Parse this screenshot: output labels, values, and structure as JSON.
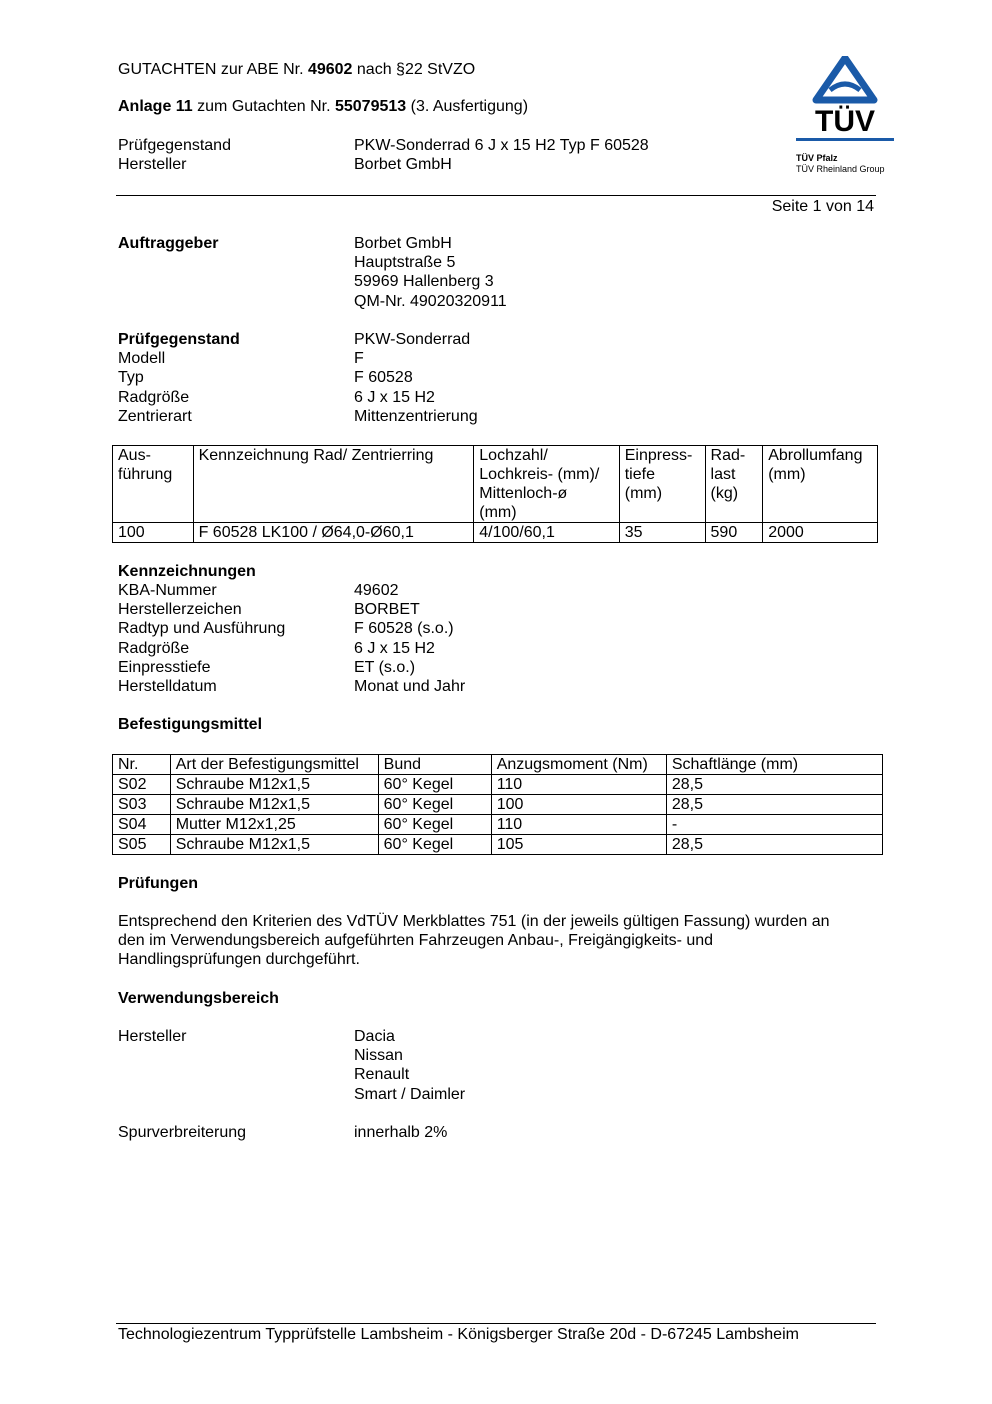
{
  "header": {
    "line1_pre": "GUTACHTEN zur ABE Nr. ",
    "line1_bold": "49602",
    "line1_post": " nach §22 StVZO",
    "line2_bold1": "Anlage 11",
    "line2_mid": " zum Gutachten Nr. ",
    "line2_bold2": "55079513",
    "line2_post": " (3. Ausfertigung)",
    "rows": [
      {
        "k": "Prüfgegenstand",
        "v": "PKW-Sonderrad 6 J x 15 H2 Typ F 60528"
      },
      {
        "k": "Hersteller",
        "v": "Borbet GmbH"
      }
    ],
    "page": "Seite 1 von 14"
  },
  "logo": {
    "text": "TÜV",
    "line1": "TÜV Pfalz",
    "line2": "TÜV Rheinland Group",
    "color": "#1a5aa8"
  },
  "auftraggeber": {
    "title": "Auftraggeber",
    "lines": [
      "Borbet GmbH",
      "Hauptstraße 5",
      "59969 Hallenberg 3",
      "QM-Nr. 49020320911"
    ]
  },
  "pruefgegenstand": {
    "rows": [
      {
        "k": "Prüfgegenstand",
        "v": "PKW-Sonderrad",
        "bold": true
      },
      {
        "k": "Modell",
        "v": "F"
      },
      {
        "k": "Typ",
        "v": "F 60528"
      },
      {
        "k": "Radgröße",
        "v": "6 J x 15 H2"
      },
      {
        "k": "Zentrierart",
        "v": "Mittenzentrierung"
      }
    ]
  },
  "table1": {
    "headers": [
      "Aus-\nführung",
      "Kennzeichnung Rad/ Zentrierring",
      "Lochzahl/\nLochkreis- (mm)/\nMittenloch-ø\n(mm)",
      "Einpress-\ntiefe\n(mm)",
      "Rad-\nlast\n(kg)",
      "Abrollumfang\n(mm)"
    ],
    "rows": [
      [
        "100",
        "F 60528 LK100 / Ø64,0-Ø60,1",
        "4/100/60,1",
        "35",
        "590",
        "2000"
      ]
    ]
  },
  "kennzeichnungen": {
    "title": "Kennzeichnungen",
    "rows": [
      {
        "k": "KBA-Nummer",
        "v": "49602"
      },
      {
        "k": "Herstellerzeichen",
        "v": "BORBET"
      },
      {
        "k": "Radtyp und Ausführung",
        "v": "F 60528 (s.o.)"
      },
      {
        "k": "Radgröße",
        "v": "6 J x 15 H2"
      },
      {
        "k": "Einpresstiefe",
        "v": "ET (s.o.)"
      },
      {
        "k": "Herstelldatum",
        "v": "Monat und Jahr"
      }
    ]
  },
  "befestigung": {
    "title": "Befestigungsmittel"
  },
  "table2": {
    "headers": [
      "Nr.",
      "Art der Befestigungsmittel",
      "Bund",
      "Anzugsmoment (Nm)",
      "Schaftlänge (mm)"
    ],
    "rows": [
      [
        "S02",
        "Schraube M12x1,5",
        "60° Kegel",
        "110",
        "28,5"
      ],
      [
        "S03",
        "Schraube M12x1,5",
        "60° Kegel",
        "100",
        "28,5"
      ],
      [
        "S04",
        "Mutter M12x1,25",
        "60° Kegel",
        "110",
        "-"
      ],
      [
        "S05",
        "Schraube M12x1,5",
        "60° Kegel",
        "105",
        "28,5"
      ]
    ]
  },
  "pruefungen": {
    "title": "Prüfungen",
    "lines": [
      "Entsprechend den Kriterien des VdTÜV Merkblattes 751 (in der jeweils gültigen Fassung) wurden an",
      "den im Verwendungsbereich aufgeführten Fahrzeugen Anbau-, Freigängigkeits- und",
      "Handlingsprüfungen durchgeführt."
    ]
  },
  "verwendung": {
    "title": "Verwendungsbereich",
    "hersteller_label": "Hersteller",
    "hersteller": [
      "Dacia",
      "Nissan",
      "Renault",
      "Smart / Daimler"
    ],
    "spur_label": "Spurverbreiterung",
    "spur": "innerhalb 2%"
  },
  "footer": "Technologiezentrum Typprüfstelle Lambsheim - Königsberger Straße 20d - D-67245 Lambsheim"
}
